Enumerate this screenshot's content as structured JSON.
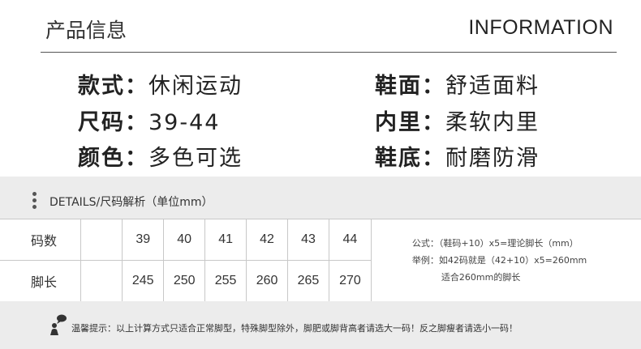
{
  "header": {
    "title_cn": "产品信息",
    "title_en": "INFORMATION"
  },
  "specs": [
    {
      "label": "款式：",
      "value": "休闲运动"
    },
    {
      "label": "鞋面：",
      "value": "舒适面料"
    },
    {
      "label": "尺码：",
      "value": "39-44"
    },
    {
      "label": "内里：",
      "value": "柔软内里"
    },
    {
      "label": "颜色：",
      "value": "多色可选"
    },
    {
      "label": "鞋底：",
      "value": "耐磨防滑"
    }
  ],
  "details": {
    "heading": "DETAILS/尺码解析（单位mm）",
    "icon": "vertical-dots-icon"
  },
  "table": {
    "size_label": "码数",
    "sizes": [
      "39",
      "40",
      "41",
      "42",
      "43",
      "44"
    ],
    "length_label": "脚长",
    "lengths": [
      "245",
      "250",
      "255",
      "260",
      "265",
      "270"
    ]
  },
  "notes": {
    "formula": "公式：（鞋码+10）x5=理论脚长（mm）",
    "example": "举例：如42码就是（42+10）x5=260mm",
    "example2": "适合260mm的脚长"
  },
  "tip": {
    "icon": "person-speech-icon",
    "text": "温馨提示：以上计算方式只适合正常脚型，特殊脚型除外，脚肥或脚背高者请选大一码！反之脚瘦者请选小一码！"
  }
}
